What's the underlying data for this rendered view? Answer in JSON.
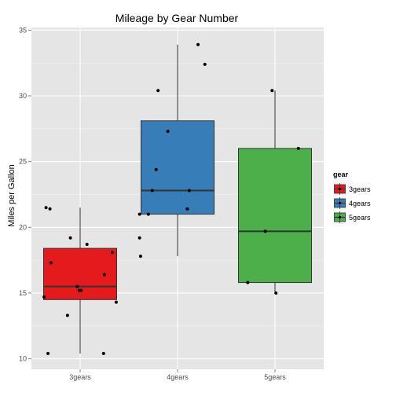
{
  "chart_data": {
    "type": "boxplot",
    "title": "Mileage by Gear Number",
    "xlabel": "",
    "ylabel": "Miles per Gallon",
    "ylim": [
      9.2,
      35.2
    ],
    "yticks": [
      10,
      15,
      20,
      25,
      30,
      35
    ],
    "grid": true,
    "legend": {
      "title": "gear",
      "position": "right"
    },
    "categories": [
      "3gears",
      "4gears",
      "5gears"
    ],
    "boxes": [
      {
        "category": "3gears",
        "min": 10.4,
        "q1": 14.5,
        "median": 15.5,
        "q3": 18.4,
        "max": 21.5,
        "color": "#e41a1c"
      },
      {
        "category": "4gears",
        "min": 17.8,
        "q1": 21.0,
        "median": 22.8,
        "q3": 28.1,
        "max": 33.9,
        "color": "#377eb8"
      },
      {
        "category": "5gears",
        "min": 15.0,
        "q1": 15.8,
        "median": 19.7,
        "q3": 26.0,
        "max": 30.4,
        "color": "#4daf4a"
      }
    ],
    "points": [
      {
        "category": "3gears",
        "jitter": -0.37,
        "value": 14.7
      },
      {
        "category": "3gears",
        "jitter": -0.35,
        "value": 21.5
      },
      {
        "category": "3gears",
        "jitter": -0.33,
        "value": 10.4
      },
      {
        "category": "3gears",
        "jitter": -0.31,
        "value": 21.4
      },
      {
        "category": "3gears",
        "jitter": -0.3,
        "value": 17.3
      },
      {
        "category": "3gears",
        "jitter": -0.13,
        "value": 13.3
      },
      {
        "category": "3gears",
        "jitter": -0.1,
        "value": 19.2
      },
      {
        "category": "3gears",
        "jitter": -0.03,
        "value": 15.5
      },
      {
        "category": "3gears",
        "jitter": -0.01,
        "value": 15.2
      },
      {
        "category": "3gears",
        "jitter": 0.01,
        "value": 15.2
      },
      {
        "category": "3gears",
        "jitter": 0.07,
        "value": 18.7
      },
      {
        "category": "3gears",
        "jitter": 0.24,
        "value": 10.4
      },
      {
        "category": "3gears",
        "jitter": 0.25,
        "value": 16.4
      },
      {
        "category": "3gears",
        "jitter": 0.33,
        "value": 18.1
      },
      {
        "category": "3gears",
        "jitter": 0.37,
        "value": 14.3
      },
      {
        "category": "4gears",
        "jitter": -0.39,
        "value": 21.0
      },
      {
        "category": "4gears",
        "jitter": -0.39,
        "value": 19.2
      },
      {
        "category": "4gears",
        "jitter": -0.38,
        "value": 17.8
      },
      {
        "category": "4gears",
        "jitter": -0.3,
        "value": 21.0
      },
      {
        "category": "4gears",
        "jitter": -0.26,
        "value": 22.8
      },
      {
        "category": "4gears",
        "jitter": -0.22,
        "value": 24.4
      },
      {
        "category": "4gears",
        "jitter": -0.2,
        "value": 30.4
      },
      {
        "category": "4gears",
        "jitter": -0.1,
        "value": 27.3
      },
      {
        "category": "4gears",
        "jitter": 0.1,
        "value": 21.4
      },
      {
        "category": "4gears",
        "jitter": 0.12,
        "value": 22.8
      },
      {
        "category": "4gears",
        "jitter": 0.21,
        "value": 33.9
      },
      {
        "category": "4gears",
        "jitter": 0.28,
        "value": 32.4
      },
      {
        "category": "5gears",
        "jitter": -0.28,
        "value": 15.8
      },
      {
        "category": "5gears",
        "jitter": -0.1,
        "value": 19.7
      },
      {
        "category": "5gears",
        "jitter": -0.03,
        "value": 30.4
      },
      {
        "category": "5gears",
        "jitter": 0.01,
        "value": 15.0
      },
      {
        "category": "5gears",
        "jitter": 0.24,
        "value": 26.0
      }
    ],
    "colors": {
      "panel_background": "#e5e5e5",
      "grid_major": "#ffffff",
      "grid_minor": "#f2f2f2",
      "box_outline": "#333333",
      "point": "#000000"
    }
  }
}
